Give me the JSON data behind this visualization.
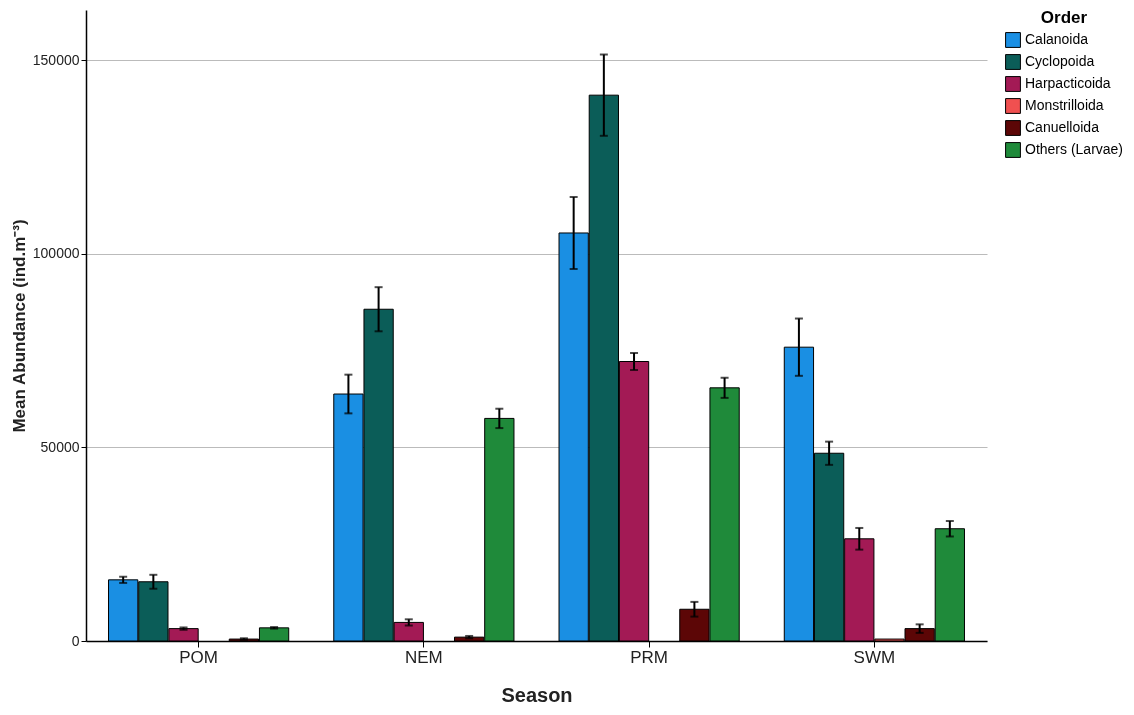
{
  "chart_data": {
    "type": "bar",
    "xlabel": "Season",
    "ylabel": "Mean Abundance (ind.m⁻³)",
    "legend_title": "Order",
    "categories": [
      "POM",
      "NEM",
      "PRM",
      "SWM"
    ],
    "series": [
      {
        "name": "Calanoida",
        "color": "#1a8fe3",
        "values": [
          15800,
          63800,
          105400,
          75900
        ],
        "errors": [
          800,
          5000,
          9300,
          7400
        ]
      },
      {
        "name": "Cyclopoida",
        "color": "#0b5d58",
        "values": [
          15300,
          85700,
          141000,
          48500
        ],
        "errors": [
          1800,
          5700,
          10500,
          3000
        ]
      },
      {
        "name": "Harpacticoida",
        "color": "#a31a55",
        "values": [
          3200,
          4800,
          72200,
          26400
        ],
        "errors": [
          300,
          800,
          2200,
          2800
        ]
      },
      {
        "name": "Monstrilloida",
        "color": "#f05050",
        "values": [
          null,
          null,
          null,
          500
        ]
      },
      {
        "name": "Canuelloida",
        "color": "#5c0606",
        "values": [
          500,
          1000,
          8200,
          3200
        ],
        "errors": [
          200,
          300,
          1900,
          1100
        ]
      },
      {
        "name": "Others (Larvae)",
        "color": "#1f8a3a",
        "values": [
          3400,
          57500,
          65400,
          29000
        ],
        "errors": [
          200,
          2500,
          2600,
          2000
        ]
      }
    ],
    "ylim": [
      0,
      163000
    ],
    "yticks": [
      0,
      50000,
      100000,
      150000
    ],
    "grid": "y",
    "legend": "top right"
  }
}
